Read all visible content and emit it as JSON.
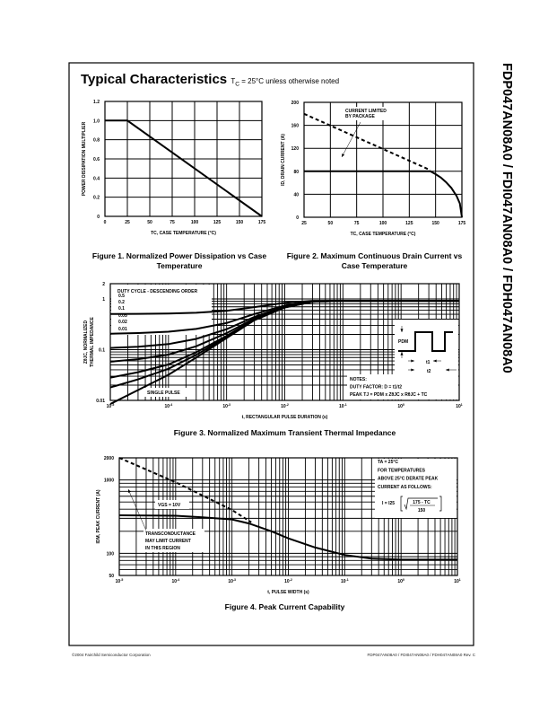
{
  "header": {
    "title": "Typical Characteristics",
    "condition": "Tₓ = 25°C unless otherwise noted",
    "condition_sub": "C",
    "condition_pre": "T",
    "condition_post": " = 25°C unless otherwise noted"
  },
  "side_title": "FDP047AN08A0 / FDI047AN08A0 / FDH047AN08A0",
  "footer": {
    "left": "©2004 Fairchild Semiconductor Corporation",
    "right": "FDP047AN08A0 / FDI047AN08A0 / FDH047AN08A0 Rev. C"
  },
  "colors": {
    "ink": "#000000",
    "paper": "#ffffff"
  },
  "chart_data": [
    {
      "id": "fig1",
      "type": "line",
      "caption": "Figure 1.  Normalized Power Dissipation vs Case Temperature",
      "xlabel": "TC, CASE TEMPERATURE (°C)",
      "ylabel": "POWER DISSIPATION MULTIPLIER",
      "xscale": "linear",
      "yscale": "linear",
      "xlim": [
        0,
        175
      ],
      "ylim": [
        0,
        1.2
      ],
      "grid": true,
      "x_ticks": [
        {
          "v": 0,
          "l": "0"
        },
        {
          "v": 25,
          "l": "25"
        },
        {
          "v": 50,
          "l": "50"
        },
        {
          "v": 75,
          "l": "75"
        },
        {
          "v": 100,
          "l": "100"
        },
        {
          "v": 125,
          "l": "125"
        },
        {
          "v": 150,
          "l": "150"
        },
        {
          "v": 175,
          "l": "175"
        }
      ],
      "y_ticks": [
        {
          "v": 0,
          "l": "0"
        },
        {
          "v": 0.2,
          "l": "0.2"
        },
        {
          "v": 0.4,
          "l": "0.4"
        },
        {
          "v": 0.6,
          "l": "0.6"
        },
        {
          "v": 0.8,
          "l": "0.8"
        },
        {
          "v": 1.0,
          "l": "1.0"
        },
        {
          "v": 1.2,
          "l": "1.2"
        }
      ],
      "series": [
        {
          "name": "multiplier",
          "style": "solid",
          "points": [
            [
              0,
              1.0
            ],
            [
              25,
              1.0
            ],
            [
              175,
              0
            ]
          ]
        }
      ]
    },
    {
      "id": "fig2",
      "type": "line",
      "caption": "Figure 2.  Maximum Continuous Drain Current vs Case Temperature",
      "xlabel": "TC, CASE TEMPERATURE (°C)",
      "ylabel": "ID, DRAIN CURRENT (A)",
      "xscale": "linear",
      "yscale": "linear",
      "xlim": [
        25,
        175
      ],
      "ylim": [
        0,
        200
      ],
      "grid": true,
      "x_ticks": [
        {
          "v": 25,
          "l": "25"
        },
        {
          "v": 50,
          "l": "50"
        },
        {
          "v": 75,
          "l": "75"
        },
        {
          "v": 100,
          "l": "100"
        },
        {
          "v": 125,
          "l": "125"
        },
        {
          "v": 150,
          "l": "150"
        },
        {
          "v": 175,
          "l": "175"
        }
      ],
      "y_ticks": [
        {
          "v": 0,
          "l": "0"
        },
        {
          "v": 40,
          "l": "40"
        },
        {
          "v": 80,
          "l": "80"
        },
        {
          "v": 120,
          "l": "120"
        },
        {
          "v": 160,
          "l": "160"
        },
        {
          "v": 200,
          "l": "200"
        }
      ],
      "annotation": [
        "CURRENT LIMITED",
        "BY PACKAGE"
      ],
      "series": [
        {
          "name": "package limit",
          "style": "dashed",
          "points": [
            [
              25,
              180
            ],
            [
              145,
              82
            ]
          ]
        },
        {
          "name": "drain current",
          "style": "solid",
          "points": [
            [
              25,
              80
            ],
            [
              145,
              80
            ],
            [
              150,
              75
            ],
            [
              155,
              69
            ],
            [
              160,
              61
            ],
            [
              165,
              51
            ],
            [
              170,
              37
            ],
            [
              173,
              24
            ],
            [
              175,
              0
            ]
          ]
        }
      ]
    },
    {
      "id": "fig3",
      "type": "line",
      "caption": "Figure 3.  Normalized Maximum Transient Thermal Impedance",
      "xlabel": "t, RECTANGULAR PULSE DURATION (s)",
      "ylabel": [
        "ZθJC, NORMALIZED",
        "THERMAL IMPEDANCE"
      ],
      "xscale": "log",
      "yscale": "log",
      "xlim": [
        1e-05,
        10
      ],
      "ylim": [
        0.01,
        2
      ],
      "grid": true,
      "x_ticks": [
        {
          "v": 1e-05,
          "l": "10",
          "s": "-5"
        },
        {
          "v": 0.0001,
          "l": "10",
          "s": "-4"
        },
        {
          "v": 0.001,
          "l": "10",
          "s": "-3"
        },
        {
          "v": 0.01,
          "l": "10",
          "s": "-2"
        },
        {
          "v": 0.1,
          "l": "10",
          "s": "-1"
        },
        {
          "v": 1,
          "l": "10",
          "s": "0"
        },
        {
          "v": 10,
          "l": "10",
          "s": "1"
        }
      ],
      "y_ticks": [
        {
          "v": 0.01,
          "l": "0.01"
        },
        {
          "v": 0.1,
          "l": "0.1"
        },
        {
          "v": 1,
          "l": "1"
        },
        {
          "v": 2,
          "l": "2"
        }
      ],
      "legend_title": "DUTY CYCLE - DESCENDING ORDER",
      "legend_values": [
        "0.5",
        "0.2",
        "0.1",
        "0.05",
        "0.02",
        "0.01"
      ],
      "single_pulse_label": "SINGLE PULSE",
      "notes": [
        "NOTES:",
        "DUTY FACTOR: D = t1/t2",
        "PEAK TJ = PDM x ZθJC x RθJC + TC"
      ],
      "inset": {
        "pdm": "PDM",
        "t1": "t1",
        "t2": "t2"
      },
      "x": [
        1e-05,
        3e-05,
        0.0001,
        0.0003,
        0.001,
        0.003,
        0.01,
        0.03,
        0.1,
        1,
        10
      ],
      "series": [
        {
          "name": "0.5",
          "values": [
            0.504,
            0.508,
            0.516,
            0.535,
            0.585,
            0.69,
            0.84,
            0.92,
            0.92,
            0.92,
            0.92
          ]
        },
        {
          "name": "0.2",
          "values": [
            0.207,
            0.213,
            0.226,
            0.256,
            0.336,
            0.504,
            0.744,
            0.904,
            0.92,
            0.92,
            0.92
          ]
        },
        {
          "name": "0.1",
          "values": [
            0.108,
            0.114,
            0.129,
            0.163,
            0.253,
            0.442,
            0.712,
            0.892,
            0.92,
            0.92,
            0.92
          ]
        },
        {
          "name": "0.05",
          "values": [
            0.058,
            0.065,
            0.08,
            0.117,
            0.212,
            0.411,
            0.696,
            0.886,
            0.92,
            0.92,
            0.92
          ]
        },
        {
          "name": "0.02",
          "values": [
            0.028,
            0.036,
            0.051,
            0.089,
            0.187,
            0.392,
            0.686,
            0.882,
            0.92,
            0.92,
            0.92
          ]
        },
        {
          "name": "0.01",
          "values": [
            0.018,
            0.026,
            0.042,
            0.079,
            0.178,
            0.386,
            0.683,
            0.881,
            0.92,
            0.92,
            0.92
          ]
        },
        {
          "name": "single pulse",
          "values": [
            0.0085,
            0.016,
            0.032,
            0.07,
            0.17,
            0.38,
            0.68,
            0.88,
            0.92,
            0.92,
            0.92
          ]
        }
      ]
    },
    {
      "id": "fig4",
      "type": "line",
      "caption": "Figure 4.  Peak Current Capability",
      "xlabel": "t, PULSE WIDTH (s)",
      "ylabel": "IDM, PEAK CURRENT (A)",
      "xscale": "log",
      "yscale": "log",
      "xlim": [
        1e-05,
        10
      ],
      "ylim": [
        50,
        2000
      ],
      "grid": true,
      "x_ticks": [
        {
          "v": 1e-05,
          "l": "10",
          "s": "-5"
        },
        {
          "v": 0.0001,
          "l": "10",
          "s": "-4"
        },
        {
          "v": 0.001,
          "l": "10",
          "s": "-3"
        },
        {
          "v": 0.01,
          "l": "10",
          "s": "-2"
        },
        {
          "v": 0.1,
          "l": "10",
          "s": "-1"
        },
        {
          "v": 1,
          "l": "10",
          "s": "0"
        },
        {
          "v": 10,
          "l": "10",
          "s": "1"
        }
      ],
      "y_ticks": [
        {
          "v": 50,
          "l": "50"
        },
        {
          "v": 100,
          "l": "100"
        },
        {
          "v": 1000,
          "l": "1000"
        },
        {
          "v": 2000,
          "l": "2000"
        }
      ],
      "vgs_label": "VGS = 10V",
      "transconductance_note": [
        "TRANSCONDUCTANCE",
        "MAY LIMIT CURRENT",
        "IN THIS REGION"
      ],
      "derate_note": [
        "TA = 25°C",
        "FOR TEMPERATURES",
        "ABOVE 25°C DERATE PEAK",
        "CURRENT AS FOLLOWS:"
      ],
      "formula": {
        "lhs": "I = I25",
        "num": "175 - TC",
        "den": "150"
      },
      "series": [
        {
          "name": "transconductance limit",
          "style": "dashed",
          "points": [
            [
              1e-05,
              2000
            ],
            [
              0.0001,
              930
            ],
            [
              0.001,
              390
            ],
            [
              0.0022,
              265
            ]
          ]
        },
        {
          "name": "VGS = 10V",
          "style": "solid",
          "points": [
            [
              1e-05,
              330
            ],
            [
              0.0001,
              325
            ],
            [
              0.0003,
              310
            ],
            [
              0.001,
              290
            ],
            [
              0.002,
              255
            ],
            [
              0.005,
              200
            ],
            [
              0.01,
              160
            ],
            [
              0.03,
              120
            ],
            [
              0.1,
              95
            ],
            [
              0.3,
              85
            ],
            [
              1,
              82
            ],
            [
              10,
              82
            ]
          ]
        }
      ]
    }
  ]
}
